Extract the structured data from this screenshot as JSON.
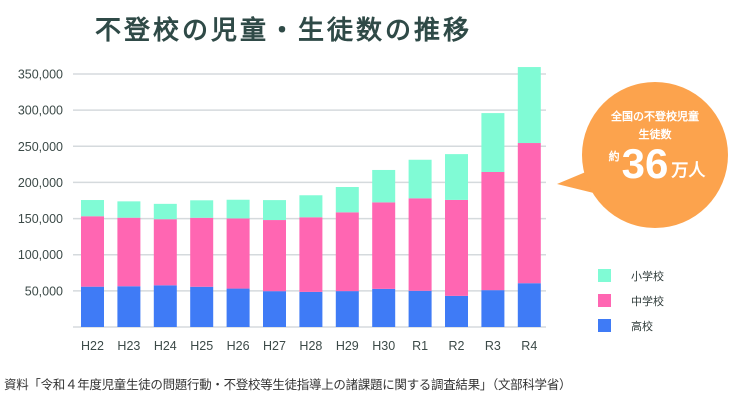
{
  "chart_data": {
    "type": "bar",
    "stacked": true,
    "title": "不登校の児童・生徒数の推移",
    "xlabel": "",
    "ylabel": "",
    "ylim": [
      0,
      350000
    ],
    "yticks": [
      "50,000",
      "100,000",
      "150,000",
      "200,000",
      "250,000",
      "300,000",
      "350,000"
    ],
    "ytick_values": [
      50000,
      100000,
      150000,
      200000,
      250000,
      300000,
      350000
    ],
    "grid": true,
    "legend_position": "right",
    "categories": [
      "H22",
      "H23",
      "H24",
      "H25",
      "H26",
      "H27",
      "H28",
      "H29",
      "H30",
      "R1",
      "R2",
      "R3",
      "R4"
    ],
    "series": [
      {
        "name": "高校",
        "color": "#3f7bf6",
        "values": [
          55776,
          56361,
          57664,
          55655,
          53156,
          49563,
          48565,
          49643,
          52723,
          50100,
          43051,
          50985,
          60575
        ]
      },
      {
        "name": "中学校",
        "color": "#ff66b2",
        "values": [
          97428,
          94836,
          91446,
          95442,
          97033,
          98408,
          103235,
          108999,
          119687,
          127922,
          132777,
          163442,
          193936
        ]
      },
      {
        "name": "小学校",
        "color": "#80fbd5",
        "values": [
          22463,
          22622,
          21243,
          24175,
          25864,
          27583,
          30448,
          35032,
          44841,
          53350,
          63350,
          81498,
          105112
        ]
      }
    ],
    "legend_order": [
      "小学校",
      "中学校",
      "高校"
    ]
  },
  "callout": {
    "line1": "全国の不登校児童",
    "line2": "生徒数",
    "prefix": "約",
    "number": "36",
    "unit": "万人",
    "color": "#fca34d"
  },
  "source": "資料「令和４年度児童生徒の問題行動・不登校等生徒指導上の諸課題に関する調査結果」（文部科学省）"
}
